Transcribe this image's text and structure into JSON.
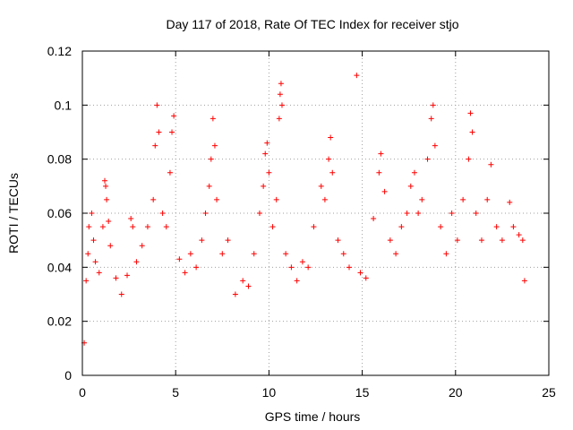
{
  "chart_data": {
    "type": "scatter",
    "title": "Day 117 of 2018, Rate Of TEC Index for receiver stjo",
    "xlabel": "GPS time / hours",
    "ylabel": "ROTI / TECUs",
    "xlim": [
      0,
      25
    ],
    "ylim": [
      0,
      0.12
    ],
    "xticks": [
      0,
      5,
      10,
      15,
      20,
      25
    ],
    "yticks": [
      0,
      0.02,
      0.04,
      0.06,
      0.08,
      0.1,
      0.12
    ],
    "xtick_labels": [
      "0",
      "5",
      "10",
      "15",
      "20",
      "25"
    ],
    "ytick_labels": [
      "0",
      "0.02",
      "0.04",
      "0.06",
      "0.08",
      "0.1",
      "0.12"
    ],
    "grid": true,
    "marker": "plus",
    "color": "#ff0000",
    "series": [
      {
        "name": "ROTI",
        "points": [
          [
            0.1,
            0.012
          ],
          [
            0.2,
            0.035
          ],
          [
            0.3,
            0.045
          ],
          [
            0.35,
            0.055
          ],
          [
            0.5,
            0.06
          ],
          [
            0.6,
            0.05
          ],
          [
            0.7,
            0.042
          ],
          [
            0.9,
            0.038
          ],
          [
            1.1,
            0.055
          ],
          [
            1.2,
            0.072
          ],
          [
            1.25,
            0.07
          ],
          [
            1.3,
            0.065
          ],
          [
            1.4,
            0.057
          ],
          [
            1.5,
            0.048
          ],
          [
            1.8,
            0.036
          ],
          [
            2.1,
            0.03
          ],
          [
            2.4,
            0.037
          ],
          [
            2.6,
            0.058
          ],
          [
            2.7,
            0.055
          ],
          [
            2.9,
            0.042
          ],
          [
            3.2,
            0.048
          ],
          [
            3.5,
            0.055
          ],
          [
            3.8,
            0.065
          ],
          [
            3.9,
            0.085
          ],
          [
            4.0,
            0.1
          ],
          [
            4.1,
            0.09
          ],
          [
            4.3,
            0.06
          ],
          [
            4.5,
            0.055
          ],
          [
            4.7,
            0.075
          ],
          [
            4.8,
            0.09
          ],
          [
            4.9,
            0.096
          ],
          [
            5.2,
            0.043
          ],
          [
            5.5,
            0.038
          ],
          [
            5.8,
            0.045
          ],
          [
            6.1,
            0.04
          ],
          [
            6.4,
            0.05
          ],
          [
            6.6,
            0.06
          ],
          [
            6.8,
            0.07
          ],
          [
            6.9,
            0.08
          ],
          [
            7.0,
            0.095
          ],
          [
            7.1,
            0.085
          ],
          [
            7.2,
            0.065
          ],
          [
            7.5,
            0.045
          ],
          [
            7.8,
            0.05
          ],
          [
            8.2,
            0.03
          ],
          [
            8.6,
            0.035
          ],
          [
            8.9,
            0.033
          ],
          [
            9.2,
            0.045
          ],
          [
            9.5,
            0.06
          ],
          [
            9.7,
            0.07
          ],
          [
            9.8,
            0.082
          ],
          [
            9.9,
            0.086
          ],
          [
            10.0,
            0.075
          ],
          [
            10.2,
            0.055
          ],
          [
            10.4,
            0.065
          ],
          [
            10.55,
            0.095
          ],
          [
            10.6,
            0.104
          ],
          [
            10.65,
            0.108
          ],
          [
            10.7,
            0.1
          ],
          [
            10.9,
            0.045
          ],
          [
            11.2,
            0.04
          ],
          [
            11.5,
            0.035
          ],
          [
            11.8,
            0.042
          ],
          [
            12.1,
            0.04
          ],
          [
            12.4,
            0.055
          ],
          [
            12.8,
            0.07
          ],
          [
            13.0,
            0.065
          ],
          [
            13.2,
            0.08
          ],
          [
            13.3,
            0.088
          ],
          [
            13.4,
            0.075
          ],
          [
            13.7,
            0.05
          ],
          [
            14.0,
            0.045
          ],
          [
            14.3,
            0.04
          ],
          [
            14.7,
            0.111
          ],
          [
            14.9,
            0.038
          ],
          [
            15.2,
            0.036
          ],
          [
            15.6,
            0.058
          ],
          [
            15.9,
            0.075
          ],
          [
            16.0,
            0.082
          ],
          [
            16.2,
            0.068
          ],
          [
            16.5,
            0.05
          ],
          [
            16.8,
            0.045
          ],
          [
            17.1,
            0.055
          ],
          [
            17.4,
            0.06
          ],
          [
            17.6,
            0.07
          ],
          [
            17.8,
            0.075
          ],
          [
            18.0,
            0.06
          ],
          [
            18.2,
            0.065
          ],
          [
            18.5,
            0.08
          ],
          [
            18.7,
            0.095
          ],
          [
            18.8,
            0.1
          ],
          [
            18.9,
            0.085
          ],
          [
            19.2,
            0.055
          ],
          [
            19.5,
            0.045
          ],
          [
            19.8,
            0.06
          ],
          [
            20.1,
            0.05
          ],
          [
            20.4,
            0.065
          ],
          [
            20.7,
            0.08
          ],
          [
            20.8,
            0.097
          ],
          [
            20.9,
            0.09
          ],
          [
            21.1,
            0.06
          ],
          [
            21.4,
            0.05
          ],
          [
            21.7,
            0.065
          ],
          [
            21.9,
            0.078
          ],
          [
            22.2,
            0.055
          ],
          [
            22.5,
            0.05
          ],
          [
            22.9,
            0.064
          ],
          [
            23.1,
            0.055
          ],
          [
            23.4,
            0.052
          ],
          [
            23.6,
            0.05
          ],
          [
            23.7,
            0.035
          ]
        ]
      }
    ]
  }
}
